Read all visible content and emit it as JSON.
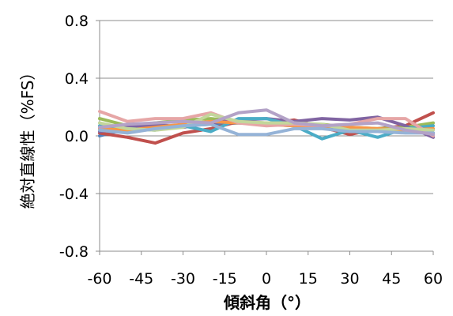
{
  "chart_data": {
    "type": "line",
    "title": "",
    "xlabel": "傾斜角（°）",
    "ylabel": "絶対直線性（%FS）",
    "x": [
      -60,
      -45,
      -30,
      -15,
      0,
      15,
      30,
      45,
      60
    ],
    "x_ticks": [
      "-60",
      "-45",
      "-30",
      "-15",
      "0",
      "15",
      "30",
      "45",
      "60"
    ],
    "y_ticks": [
      "0.8",
      "0.4",
      "0.0",
      "-0.4",
      "-0.8"
    ],
    "y_tick_values": [
      0.8,
      0.4,
      0.0,
      -0.4,
      -0.8
    ],
    "xlim": [
      -60,
      60
    ],
    "ylim": [
      -0.8,
      0.8
    ],
    "grid": "horizontal",
    "legend": "none",
    "series": [
      {
        "color": "#4F81BD",
        "x": [
          -60,
          -50,
          -40,
          -30,
          -20,
          -10,
          0,
          10,
          20,
          30,
          40,
          50,
          60
        ],
        "values": [
          0.0,
          0.05,
          0.06,
          0.07,
          0.08,
          0.09,
          0.08,
          0.07,
          0.06,
          0.05,
          0.04,
          0.03,
          0.02
        ]
      },
      {
        "color": "#C0504D",
        "x": [
          -60,
          -50,
          -40,
          -30,
          -20,
          -10,
          0,
          10,
          20,
          30,
          40,
          50,
          60
        ],
        "values": [
          0.02,
          -0.01,
          -0.05,
          0.02,
          0.05,
          0.1,
          0.08,
          0.11,
          0.06,
          0.01,
          0.05,
          0.07,
          0.16
        ]
      },
      {
        "color": "#9BBB59",
        "x": [
          -60,
          -50,
          -40,
          -30,
          -20,
          -10,
          0,
          10,
          20,
          30,
          40,
          50,
          60
        ],
        "values": [
          0.12,
          0.07,
          0.09,
          0.11,
          0.12,
          0.1,
          0.09,
          0.08,
          0.08,
          0.06,
          0.05,
          0.06,
          0.09
        ]
      },
      {
        "color": "#8064A2",
        "x": [
          -60,
          -50,
          -40,
          -30,
          -20,
          -10,
          0,
          10,
          20,
          30,
          40,
          50,
          60
        ],
        "values": [
          0.03,
          0.06,
          0.08,
          0.06,
          0.09,
          0.11,
          0.12,
          0.1,
          0.12,
          0.11,
          0.13,
          0.07,
          -0.01
        ]
      },
      {
        "color": "#4BACC6",
        "x": [
          -60,
          -50,
          -40,
          -30,
          -20,
          -10,
          0,
          10,
          20,
          30,
          40,
          50,
          60
        ],
        "values": [
          0.07,
          0.05,
          0.04,
          0.07,
          0.03,
          0.12,
          0.12,
          0.07,
          -0.02,
          0.04,
          -0.01,
          0.05,
          0.07
        ]
      },
      {
        "color": "#F79646",
        "x": [
          -60,
          -50,
          -40,
          -30,
          -20,
          -10,
          0,
          10,
          20,
          30,
          40,
          50,
          60
        ],
        "values": [
          0.05,
          0.04,
          0.06,
          0.08,
          0.1,
          0.09,
          0.08,
          0.07,
          0.07,
          0.06,
          0.05,
          0.04,
          0.05
        ]
      },
      {
        "color": "#E6A6A6",
        "x": [
          -60,
          -50,
          -40,
          -30,
          -20,
          -10,
          0,
          10,
          20,
          30,
          40,
          50,
          60
        ],
        "values": [
          0.17,
          0.1,
          0.12,
          0.12,
          0.16,
          0.09,
          0.07,
          0.08,
          0.07,
          0.08,
          0.12,
          0.12,
          0.0
        ]
      },
      {
        "color": "#C3D69B",
        "x": [
          -60,
          -50,
          -40,
          -30,
          -20,
          -10,
          0,
          10,
          20,
          30,
          40,
          50,
          60
        ],
        "values": [
          0.09,
          0.05,
          0.04,
          0.06,
          0.15,
          0.1,
          0.09,
          0.09,
          0.08,
          0.04,
          0.04,
          0.05,
          0.04
        ]
      },
      {
        "color": "#95B3D7",
        "x": [
          -60,
          -50,
          -40,
          -30,
          -20,
          -10,
          0,
          10,
          20,
          30,
          40,
          50,
          60
        ],
        "values": [
          0.04,
          0.02,
          0.05,
          0.07,
          0.08,
          0.01,
          0.01,
          0.05,
          0.05,
          0.03,
          0.03,
          0.02,
          0.02
        ]
      },
      {
        "color": "#B3A2C7",
        "x": [
          -60,
          -50,
          -40,
          -30,
          -20,
          -10,
          0,
          10,
          20,
          30,
          40,
          50,
          60
        ],
        "values": [
          0.06,
          0.08,
          0.09,
          0.1,
          0.09,
          0.16,
          0.18,
          0.09,
          0.07,
          0.08,
          0.09,
          0.04,
          0.01
        ]
      }
    ]
  }
}
